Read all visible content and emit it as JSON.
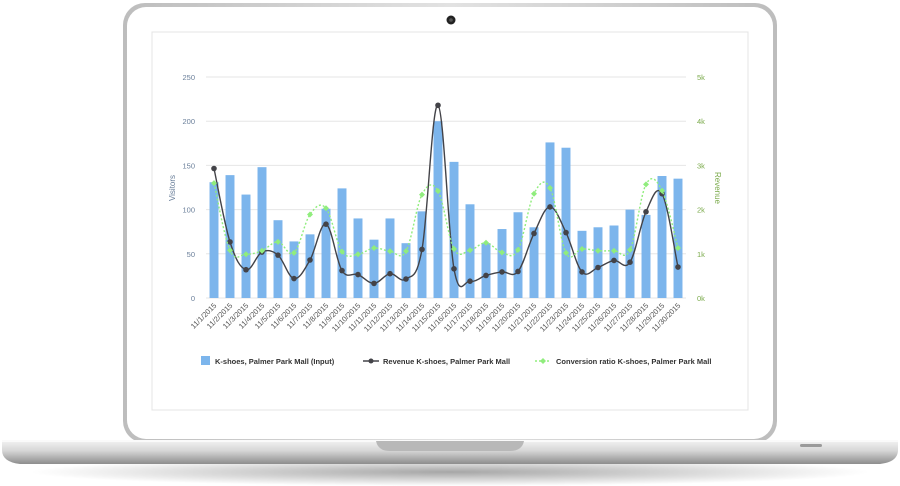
{
  "colors": {
    "bars": "#7cb5ec",
    "revenue": "#434348",
    "conversion": "#90ed7d",
    "left_axis": "#6a7f9a",
    "right_axis": "#7aaa4a",
    "grid": "#e6e6e6"
  },
  "icons": {
    "camera": "webcam-icon"
  },
  "chart_data": {
    "type": "bar",
    "title": "",
    "categories": [
      "11/1/2015",
      "11/2/2015",
      "11/3/2015",
      "11/4/2015",
      "11/5/2015",
      "11/6/2015",
      "11/7/2015",
      "11/8/2015",
      "11/9/2015",
      "11/10/2015",
      "11/11/2015",
      "11/12/2015",
      "11/13/2015",
      "11/14/2015",
      "11/15/2015",
      "11/16/2015",
      "11/17/2015",
      "11/18/2015",
      "11/19/2015",
      "11/20/2015",
      "11/21/2015",
      "11/22/2015",
      "11/23/2015",
      "11/24/2015",
      "11/25/2015",
      "11/26/2015",
      "11/27/2015",
      "11/28/2015",
      "11/29/2015",
      "11/30/2015"
    ],
    "y_left": {
      "label": "Visitors",
      "range": [
        0,
        250
      ],
      "ticks": [
        "0",
        "50",
        "100",
        "150",
        "200",
        "250"
      ]
    },
    "y_right": {
      "label": "Revenue",
      "range": [
        0,
        5000
      ],
      "ticks": [
        "0k",
        "1k",
        "2k",
        "3k",
        "4k",
        "5k"
      ]
    },
    "grid": true,
    "legend_position": "bottom",
    "series": [
      {
        "name": "K-shoes, Palmer Park Mall (Input)",
        "kind": "bar",
        "axis": "left",
        "values": [
          131,
          139,
          117,
          148,
          88,
          64,
          72,
          101,
          124,
          90,
          66,
          90,
          62,
          98,
          200,
          154,
          106,
          62,
          78,
          97,
          80,
          176,
          170,
          76,
          80,
          82,
          100,
          94,
          138,
          135
        ]
      },
      {
        "name": "Revenue K-shoes, Palmer Park Mall",
        "kind": "line",
        "axis": "right",
        "values": [
          2930,
          1270,
          640,
          1040,
          970,
          440,
          860,
          1670,
          620,
          530,
          330,
          550,
          430,
          1100,
          4360,
          660,
          380,
          510,
          590,
          600,
          1460,
          2060,
          1480,
          590,
          690,
          850,
          810,
          1950,
          2360,
          700
        ]
      },
      {
        "name": "Conversion ratio K-shoes, Palmer Park Mall",
        "kind": "line-dotted",
        "axis": "right",
        "values": [
          2600,
          1080,
          990,
          1070,
          1270,
          1020,
          1890,
          2030,
          1050,
          990,
          1130,
          1060,
          1060,
          2340,
          2420,
          1110,
          1080,
          1250,
          1030,
          1090,
          2360,
          2490,
          1020,
          1110,
          1070,
          1070,
          1090,
          2570,
          2430,
          1130
        ]
      }
    ]
  }
}
